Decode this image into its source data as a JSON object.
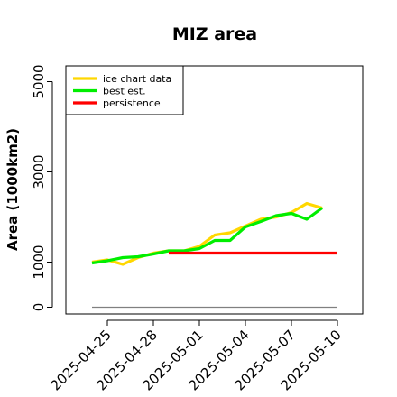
{
  "chart_data": {
    "type": "line",
    "title": "MIZ area",
    "xlabel": "",
    "ylabel": "Area (1000km2)",
    "x": [
      "2025-04-24",
      "2025-04-25",
      "2025-04-26",
      "2025-04-27",
      "2025-04-28",
      "2025-04-29",
      "2025-04-30",
      "2025-05-01",
      "2025-05-02",
      "2025-05-03",
      "2025-05-04",
      "2025-05-05",
      "2025-05-06",
      "2025-05-07",
      "2025-05-08",
      "2025-05-09",
      "2025-05-10"
    ],
    "x_ticks": [
      "2025-04-25",
      "2025-04-28",
      "2025-05-01",
      "2025-05-04",
      "2025-05-07",
      "2025-05-10"
    ],
    "y_ticks": [
      0,
      1000,
      3000,
      5000
    ],
    "ylim": [
      -150,
      5350
    ],
    "grid": false,
    "legend_position": "top-left",
    "reference_line": {
      "value": 0,
      "color": "#808080"
    },
    "series": [
      {
        "name": "ice chart data",
        "color": "#ffd700",
        "values": [
          1000,
          1050,
          950,
          1100,
          1200,
          1250,
          1250,
          1350,
          1600,
          1650,
          1800,
          1950,
          2000,
          2100,
          2300,
          2200,
          null
        ]
      },
      {
        "name": "best est.",
        "color": "#00ee00",
        "values": [
          980,
          1030,
          1100,
          1120,
          1180,
          1250,
          1250,
          1300,
          1480,
          1480,
          1780,
          1900,
          2030,
          2080,
          1950,
          2200,
          null
        ]
      },
      {
        "name": "persistence",
        "color": "#ff0000",
        "values": [
          null,
          null,
          null,
          null,
          null,
          1200,
          1200,
          1200,
          1200,
          1200,
          1200,
          1200,
          1200,
          1200,
          1200,
          1200,
          1200
        ]
      }
    ]
  }
}
